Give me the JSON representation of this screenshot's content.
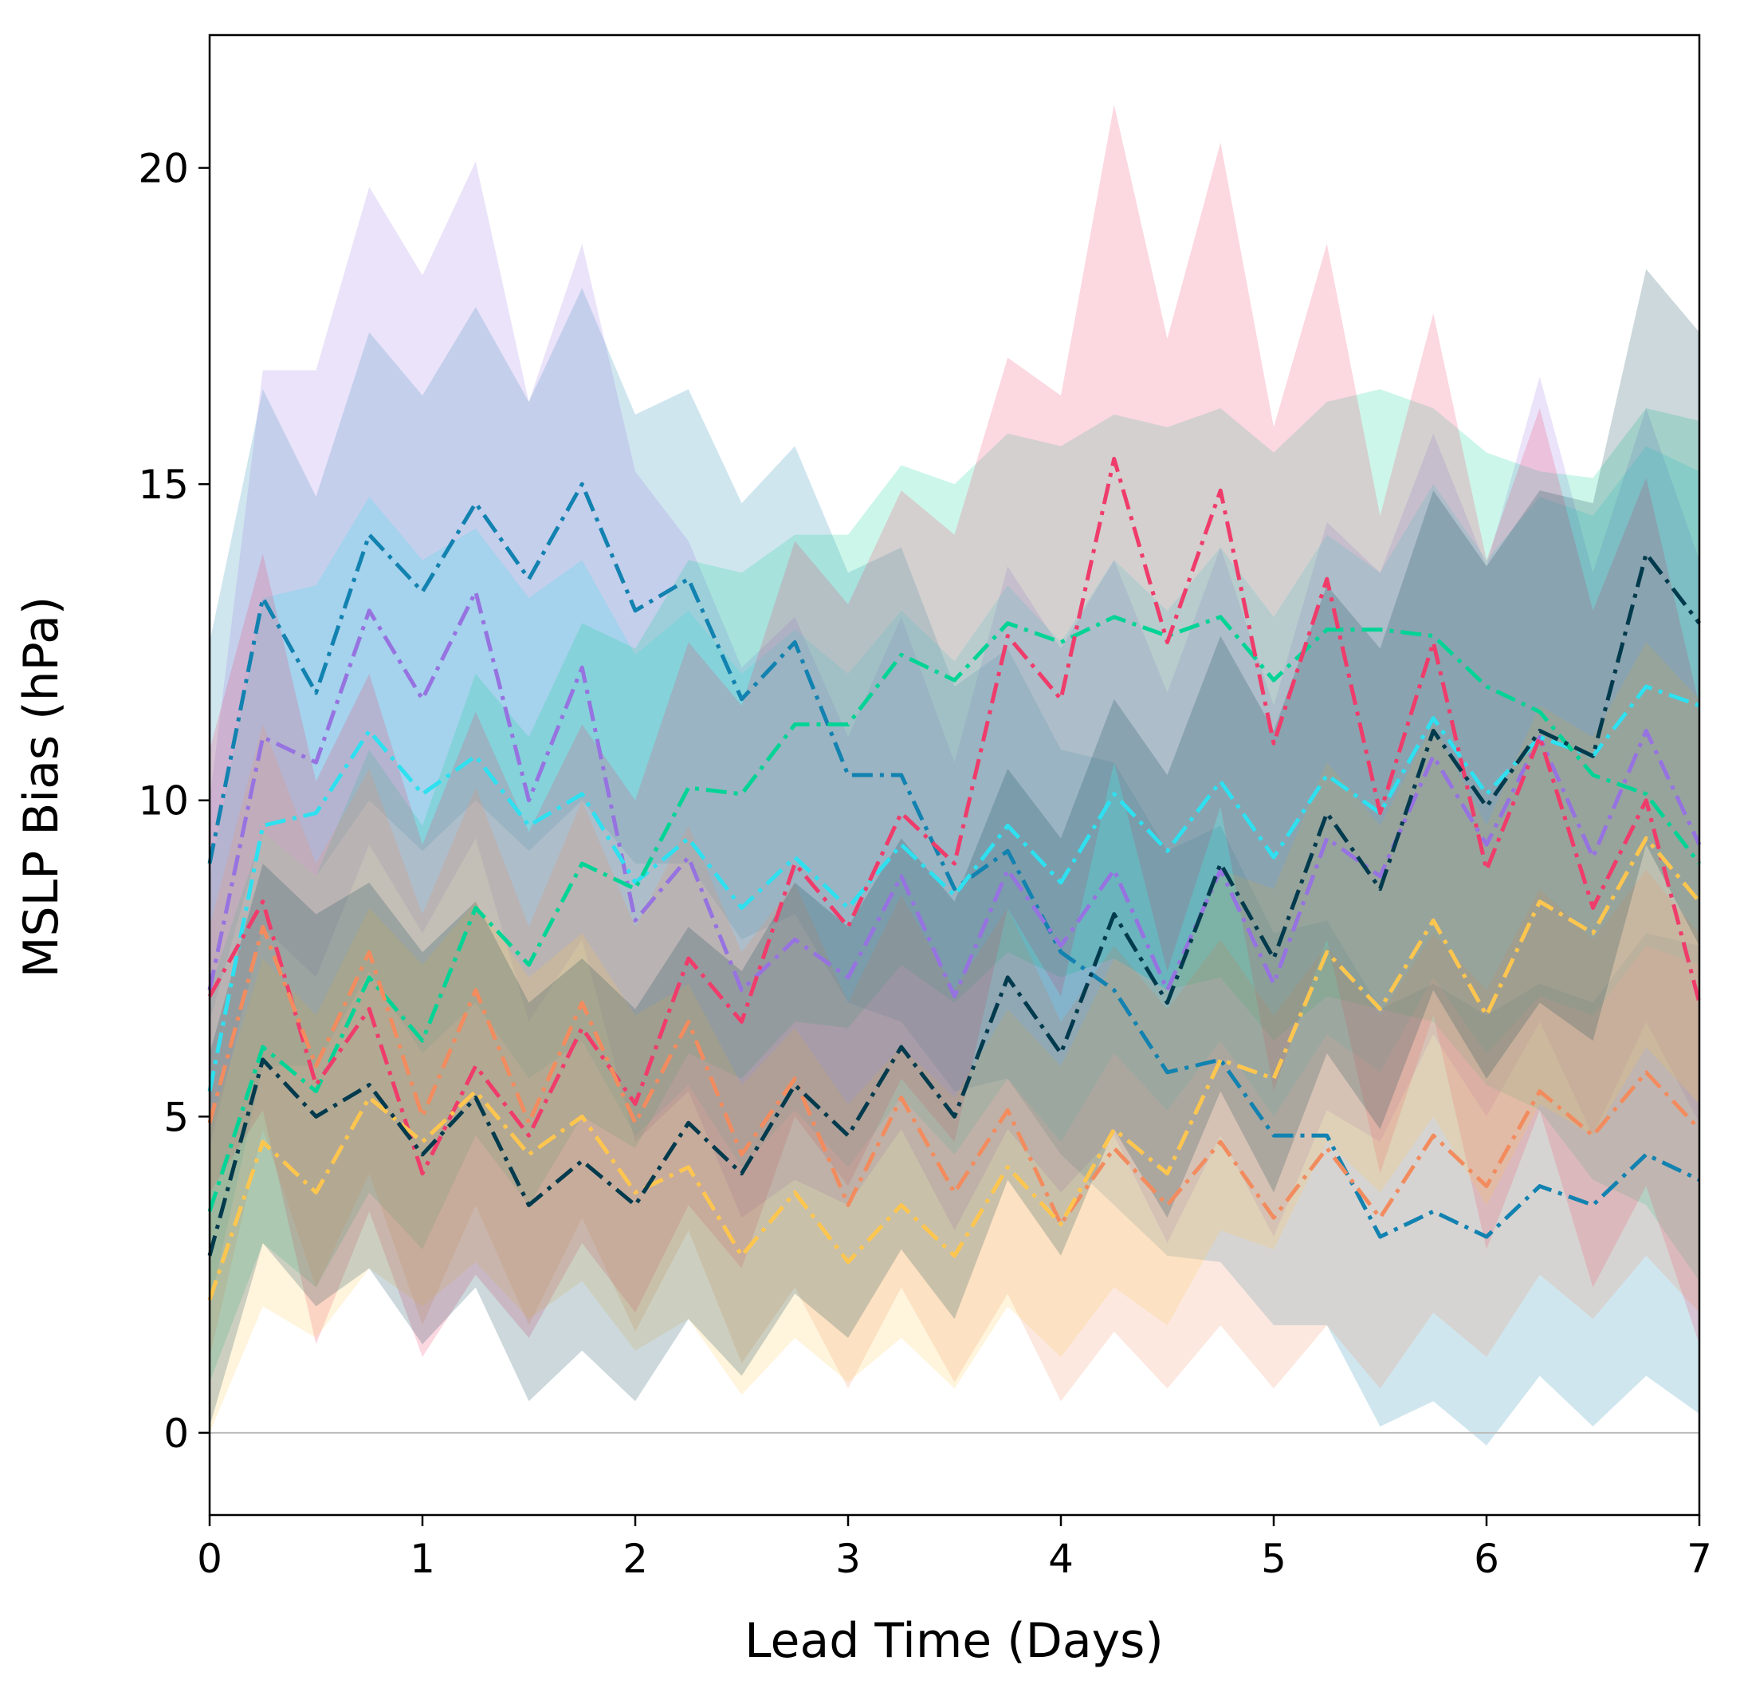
{
  "chart_data": {
    "type": "line",
    "title": "",
    "xlabel": "Lead Time (Days)",
    "ylabel": "MSLP Bias (hPa)",
    "xlim": [
      0,
      7
    ],
    "ylim": [
      -1.3,
      22.1
    ],
    "xticks": [
      0,
      1,
      2,
      3,
      4,
      5,
      6,
      7
    ],
    "yticks": [
      0,
      5,
      10,
      15,
      20
    ],
    "xtick_labels": [
      "0",
      "1",
      "2",
      "3",
      "4",
      "5",
      "6",
      "7"
    ],
    "ytick_labels": [
      "0",
      "5",
      "10",
      "15",
      "20"
    ],
    "grid": false,
    "legend": "none",
    "reference_line": {
      "y": 0,
      "color": "#bbbbbb"
    },
    "line_style": "dash-dot",
    "x": [
      0,
      0.25,
      0.5,
      0.75,
      1,
      1.25,
      1.5,
      1.75,
      2,
      2.25,
      2.5,
      2.75,
      3,
      3.25,
      3.5,
      3.75,
      4,
      4.25,
      4.5,
      4.75,
      5,
      5.25,
      5.5,
      5.75,
      6,
      6.25,
      6.5,
      6.75,
      7
    ],
    "series": [
      {
        "color": "#1282b0",
        "values": [
          9.0,
          13.2,
          11.7,
          14.2,
          13.3,
          14.7,
          13.5,
          15.0,
          13.0,
          13.5,
          11.6,
          12.5,
          10.4,
          10.4,
          8.6,
          9.2,
          7.6,
          7.0,
          5.7,
          5.9,
          4.7,
          4.7,
          3.1,
          3.5,
          3.1,
          3.9,
          3.6,
          4.4,
          4.0
        ],
        "lower": [
          6.5,
          9.5,
          8.8,
          10.0,
          9.2,
          10.0,
          9.2,
          10.0,
          9.0,
          9.0,
          7.8,
          8.2,
          6.8,
          6.5,
          5.4,
          5.6,
          4.4,
          3.6,
          2.8,
          2.7,
          1.7,
          1.7,
          0.1,
          0.5,
          -0.2,
          0.9,
          0.1,
          0.9,
          0.3
        ],
        "upper": [
          12.5,
          16.5,
          14.8,
          17.4,
          16.4,
          17.8,
          16.3,
          18.1,
          16.1,
          16.5,
          14.7,
          15.6,
          13.6,
          14.0,
          11.8,
          12.4,
          10.8,
          10.6,
          9.2,
          9.6,
          7.9,
          8.1,
          6.7,
          7.1,
          6.6,
          7.1,
          6.8,
          7.9,
          7.7
        ]
      },
      {
        "color": "#9673e0",
        "values": [
          7.0,
          11.0,
          10.6,
          13.0,
          11.6,
          13.3,
          10.0,
          12.1,
          8.1,
          9.1,
          7.0,
          7.8,
          7.2,
          8.8,
          6.9,
          8.9,
          7.7,
          8.9,
          7.0,
          8.9,
          7.1,
          9.4,
          8.8,
          10.7,
          9.3,
          11.0,
          9.1,
          11.1,
          9.3
        ],
        "lower": [
          4.5,
          8.0,
          7.2,
          9.3,
          7.9,
          9.4,
          6.5,
          7.8,
          4.6,
          5.4,
          3.4,
          4.0,
          3.6,
          4.8,
          3.2,
          4.8,
          3.8,
          4.7,
          3.0,
          4.7,
          3.1,
          5.1,
          4.6,
          6.3,
          5.0,
          6.5,
          4.7,
          6.5,
          4.9
        ],
        "upper": [
          10.0,
          16.8,
          16.8,
          19.7,
          18.3,
          20.1,
          16.3,
          18.8,
          15.2,
          14.1,
          12.1,
          12.9,
          11.0,
          12.9,
          10.6,
          13.7,
          12.4,
          13.8,
          11.7,
          14.0,
          11.5,
          14.4,
          13.6,
          15.8,
          13.7,
          16.7,
          13.6,
          16.2,
          13.8
        ]
      },
      {
        "color": "#2ee0f0",
        "values": [
          5.4,
          9.6,
          9.8,
          11.1,
          10.1,
          10.7,
          9.6,
          10.1,
          8.7,
          9.4,
          8.3,
          9.1,
          8.3,
          9.3,
          8.5,
          9.6,
          8.7,
          10.1,
          9.2,
          10.3,
          9.1,
          10.4,
          9.8,
          11.3,
          10.1,
          11.0,
          10.7,
          11.8,
          11.5
        ],
        "lower": [
          2.0,
          5.8,
          5.8,
          7.3,
          6.0,
          6.8,
          5.6,
          6.2,
          4.7,
          5.5,
          4.2,
          5.1,
          4.2,
          5.3,
          4.4,
          5.6,
          4.6,
          6.0,
          5.1,
          6.2,
          5.0,
          6.3,
          5.7,
          7.2,
          6.0,
          6.9,
          6.6,
          7.7,
          7.4
        ],
        "upper": [
          8.8,
          13.2,
          13.4,
          14.8,
          13.8,
          14.3,
          13.2,
          13.8,
          12.3,
          13.0,
          12.0,
          12.7,
          12.0,
          13.0,
          12.2,
          13.4,
          12.5,
          13.8,
          13.0,
          14.0,
          12.9,
          14.2,
          13.6,
          15.0,
          13.8,
          14.8,
          14.5,
          15.6,
          15.2
        ]
      },
      {
        "color": "#03d496",
        "values": [
          3.5,
          6.1,
          5.4,
          7.2,
          6.2,
          8.3,
          7.4,
          9.0,
          8.6,
          10.2,
          10.1,
          11.2,
          11.2,
          12.3,
          11.9,
          12.8,
          12.5,
          12.9,
          12.6,
          12.9,
          11.9,
          12.7,
          12.7,
          12.6,
          11.8,
          11.4,
          10.4,
          10.1,
          9.0
        ],
        "lower": [
          0.8,
          3.0,
          2.3,
          3.8,
          2.9,
          4.7,
          3.6,
          5.0,
          4.5,
          6.0,
          5.6,
          6.5,
          6.4,
          7.4,
          6.8,
          7.6,
          7.2,
          7.5,
          7.0,
          7.2,
          6.2,
          6.9,
          6.7,
          6.5,
          5.5,
          5.1,
          4.0,
          3.6,
          2.4
        ],
        "upper": [
          7.0,
          9.5,
          8.8,
          10.8,
          9.6,
          12.0,
          11.0,
          12.8,
          12.4,
          13.8,
          13.6,
          14.2,
          14.2,
          15.3,
          15.0,
          15.8,
          15.6,
          16.1,
          15.9,
          16.2,
          15.5,
          16.3,
          16.5,
          16.2,
          15.5,
          15.2,
          15.1,
          16.2,
          16.0
        ]
      },
      {
        "color": "#ef3c6b",
        "values": [
          6.9,
          8.4,
          5.5,
          6.7,
          4.1,
          5.8,
          4.7,
          6.4,
          5.2,
          7.5,
          6.5,
          9.0,
          8.0,
          9.8,
          9.0,
          12.6,
          11.6,
          15.4,
          12.5,
          14.9,
          10.9,
          13.5,
          9.8,
          12.5,
          8.9,
          11.0,
          8.3,
          10.0,
          6.8
        ],
        "lower": [
          3.8,
          5.1,
          1.4,
          3.5,
          1.2,
          2.5,
          1.5,
          3.0,
          1.9,
          3.6,
          2.6,
          5.0,
          3.9,
          5.6,
          4.6,
          8.3,
          6.9,
          10.6,
          7.3,
          9.9,
          5.4,
          7.8,
          4.1,
          6.6,
          2.9,
          5.1,
          2.3,
          3.9,
          1.4
        ],
        "upper": [
          10.8,
          13.9,
          10.3,
          12.0,
          9.3,
          11.4,
          9.5,
          11.2,
          10.0,
          12.5,
          11.5,
          14.1,
          13.1,
          14.9,
          14.2,
          17.0,
          16.4,
          21.0,
          17.3,
          20.4,
          15.9,
          18.8,
          14.5,
          17.7,
          13.8,
          16.2,
          13.0,
          15.1,
          11.5
        ]
      },
      {
        "color": "#f28c5f",
        "values": [
          4.9,
          8.0,
          5.8,
          7.6,
          5.0,
          7.0,
          4.9,
          6.8,
          4.9,
          6.5,
          4.4,
          5.6,
          3.6,
          5.3,
          3.8,
          5.1,
          3.3,
          4.5,
          3.6,
          4.6,
          3.4,
          4.5,
          3.4,
          4.7,
          3.9,
          5.4,
          4.7,
          5.7,
          4.8
        ],
        "lower": [
          1.2,
          4.8,
          2.3,
          4.1,
          1.7,
          3.6,
          1.7,
          3.4,
          1.6,
          3.2,
          1.1,
          2.3,
          0.7,
          2.3,
          0.8,
          2.2,
          0.5,
          1.6,
          0.7,
          1.7,
          0.7,
          1.7,
          0.7,
          1.9,
          1.2,
          2.5,
          1.8,
          2.8,
          1.9
        ],
        "upper": [
          8.0,
          11.2,
          9.0,
          10.5,
          8.2,
          10.2,
          8.0,
          10.0,
          8.0,
          9.6,
          7.6,
          8.7,
          6.8,
          8.5,
          7.0,
          8.3,
          6.5,
          7.7,
          6.7,
          7.8,
          6.6,
          7.7,
          6.6,
          7.9,
          7.0,
          8.6,
          7.8,
          8.9,
          7.9
        ]
      },
      {
        "color": "#fec64f",
        "values": [
          2.1,
          4.6,
          3.8,
          5.3,
          4.6,
          5.4,
          4.4,
          5.0,
          3.8,
          4.2,
          2.8,
          3.8,
          2.7,
          3.6,
          2.8,
          4.2,
          3.3,
          4.8,
          4.1,
          5.9,
          5.6,
          7.6,
          6.7,
          8.1,
          6.6,
          8.4,
          7.9,
          9.4,
          8.4
        ],
        "lower": [
          0.0,
          2.0,
          1.5,
          2.6,
          2.0,
          2.7,
          1.8,
          2.4,
          1.3,
          1.8,
          0.6,
          1.5,
          0.8,
          1.5,
          0.7,
          2.0,
          1.2,
          2.3,
          1.7,
          3.2,
          2.9,
          4.6,
          3.8,
          5.0,
          3.6,
          5.2,
          4.7,
          6.1,
          5.2
        ],
        "upper": [
          4.8,
          7.5,
          6.6,
          8.3,
          7.4,
          8.4,
          7.2,
          7.9,
          6.6,
          7.1,
          5.5,
          6.4,
          5.2,
          6.1,
          5.3,
          6.7,
          5.8,
          7.5,
          7.0,
          8.9,
          8.6,
          10.6,
          9.6,
          11.2,
          9.6,
          11.5,
          11.0,
          12.5,
          11.6
        ]
      },
      {
        "color": "#003a4d",
        "values": [
          2.8,
          5.9,
          5.0,
          5.5,
          4.4,
          5.3,
          3.6,
          4.3,
          3.6,
          4.9,
          4.1,
          5.5,
          4.7,
          6.1,
          5.0,
          7.2,
          6.0,
          8.2,
          6.8,
          9.0,
          7.5,
          9.8,
          8.6,
          11.1,
          9.9,
          11.1,
          10.7,
          13.9,
          12.8
        ],
        "lower": [
          0.1,
          3.0,
          2.0,
          2.6,
          1.4,
          2.3,
          0.5,
          1.3,
          0.5,
          1.8,
          0.9,
          2.2,
          1.5,
          2.9,
          1.8,
          4.0,
          2.8,
          4.8,
          3.4,
          5.4,
          3.8,
          6.0,
          4.8,
          7.0,
          5.6,
          6.8,
          6.2,
          9.3,
          7.7
        ],
        "upper": [
          6.0,
          9.0,
          8.2,
          8.7,
          7.6,
          8.4,
          6.8,
          7.5,
          6.7,
          8.0,
          7.3,
          8.7,
          8.0,
          9.4,
          8.4,
          10.5,
          9.4,
          11.6,
          10.4,
          12.6,
          11.1,
          13.4,
          12.4,
          14.9,
          13.7,
          14.9,
          14.7,
          18.4,
          17.4
        ]
      }
    ]
  }
}
